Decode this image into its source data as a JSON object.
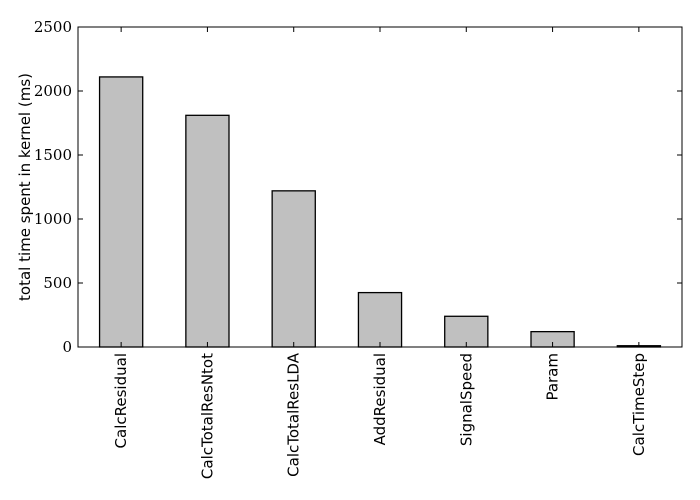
{
  "chart_data": {
    "type": "bar",
    "categories": [
      "CalcResidual",
      "CalcTotalResNtot",
      "CalcTotalResLDA",
      "AddResidual",
      "SignalSpeed",
      "Param",
      "CalcTimeStep"
    ],
    "values": [
      2110,
      1810,
      1220,
      425,
      240,
      120,
      10
    ],
    "title": "",
    "xlabel": "",
    "ylabel": "total time spent in kernel (ms)",
    "ylim": [
      0,
      2500
    ],
    "yticks": [
      0,
      500,
      1000,
      1500,
      2000,
      2500
    ],
    "bar_color": "#c0c0c0",
    "edge_color": "#000000",
    "grid": false,
    "legend": "none"
  }
}
